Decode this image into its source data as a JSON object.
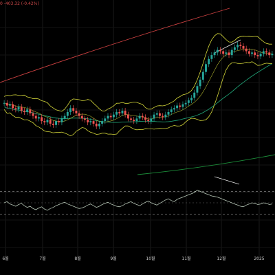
{
  "header": {
    "change_text": "0  -403.32 (-0.42%)"
  },
  "colors": {
    "background": "#000000",
    "up": "#26a69a",
    "down": "#ef5350",
    "bollinger": "#d6d93a",
    "ma_long": "#1f9c72",
    "ma_far": "#1c8f3a",
    "trend": "#c94040",
    "rsi": "#b8c8b8",
    "guide": "#e6e6e6"
  },
  "chart_data": {
    "type": "candlestick",
    "title": "",
    "x_tick_labels": [
      "6월",
      "7월",
      "8월",
      "9월",
      "10월",
      "11월",
      "12월",
      "2025"
    ],
    "grid": true,
    "price_panel": {
      "candles_close_relative": [
        62,
        60,
        61,
        58,
        57,
        59,
        56,
        55,
        57,
        54,
        52,
        50,
        51,
        48,
        47,
        49,
        46,
        45,
        48,
        47,
        50,
        52,
        55,
        58,
        56,
        54,
        52,
        50,
        49,
        47,
        48,
        46,
        44,
        46,
        48,
        50,
        52,
        51,
        53,
        55,
        54,
        56,
        53,
        50,
        49,
        48,
        50,
        52,
        51,
        49,
        48,
        50,
        53,
        54,
        52,
        51,
        53,
        55,
        57,
        58,
        60,
        59,
        61,
        62,
        64,
        66,
        70,
        75,
        80,
        86,
        92,
        96,
        99,
        101,
        103,
        102,
        100,
        101,
        99,
        103,
        105,
        107,
        106,
        104,
        102,
        100,
        101,
        99,
        98,
        100,
        102,
        101,
        99,
        100
      ],
      "bollinger": "upper / middle / lower bands around price",
      "moving_averages": [
        "ma_long",
        "ma_far"
      ]
    },
    "rsi_panel": {
      "values": [
        50,
        52,
        48,
        46,
        44,
        47,
        49,
        45,
        42,
        44,
        40,
        38,
        41,
        43,
        39,
        37,
        40,
        42,
        45,
        47,
        49,
        51,
        48,
        46,
        44,
        42,
        40,
        41,
        43,
        46,
        48,
        45,
        42,
        44,
        47,
        49,
        51,
        48,
        46,
        44,
        43,
        45,
        48,
        50,
        52,
        49,
        47,
        45,
        48,
        51,
        53,
        50,
        48,
        46,
        49,
        52,
        55,
        57,
        54,
        52,
        56,
        58,
        60,
        62,
        64,
        66,
        68,
        72,
        70,
        68,
        66,
        64,
        62,
        61,
        60,
        58,
        56,
        54,
        52,
        50,
        48,
        46,
        44,
        43,
        46,
        48,
        50,
        49,
        47,
        48,
        50,
        49,
        47,
        48
      ],
      "overbought": 70,
      "oversold": 30
    }
  }
}
